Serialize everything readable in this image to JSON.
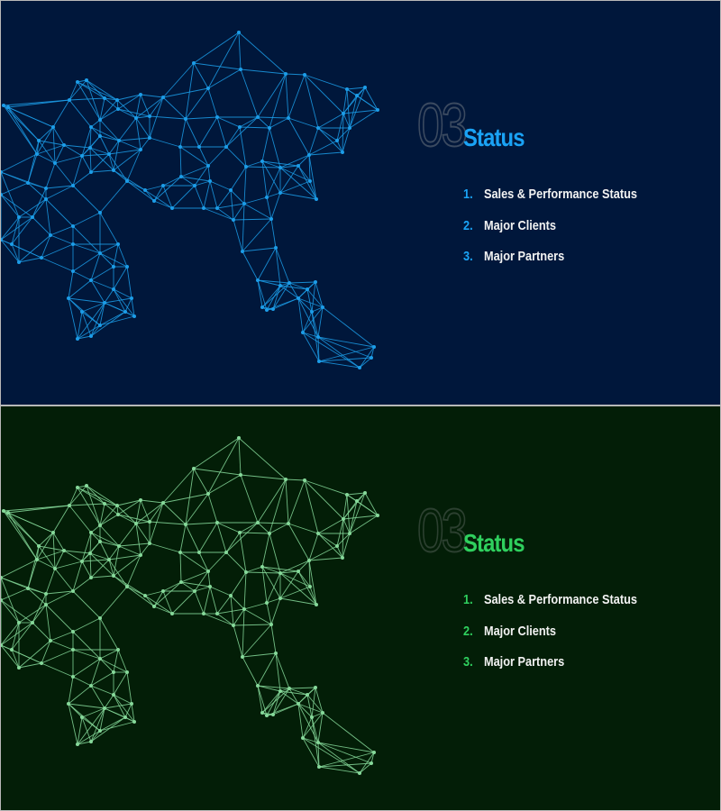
{
  "slides": [
    {
      "theme": "blue",
      "section_number": "03",
      "title": "Status",
      "items": [
        {
          "number": "1.",
          "label": "Sales & Performance Status"
        },
        {
          "number": "2.",
          "label": "Major Clients"
        },
        {
          "number": "3.",
          "label": "Major Partners"
        }
      ],
      "colors": {
        "background": "#00173b",
        "accent": "#1aa3f5",
        "network": "#1c9de8"
      }
    },
    {
      "theme": "green",
      "section_number": "03",
      "title": "Status",
      "items": [
        {
          "number": "1.",
          "label": "Sales & Performance Status"
        },
        {
          "number": "2.",
          "label": "Major Clients"
        },
        {
          "number": "3.",
          "label": "Major Partners"
        }
      ],
      "colors": {
        "background": "#031e07",
        "accent": "#2fd05e",
        "network": "#86d99a"
      }
    }
  ],
  "illustration": "world-map-network-icon"
}
